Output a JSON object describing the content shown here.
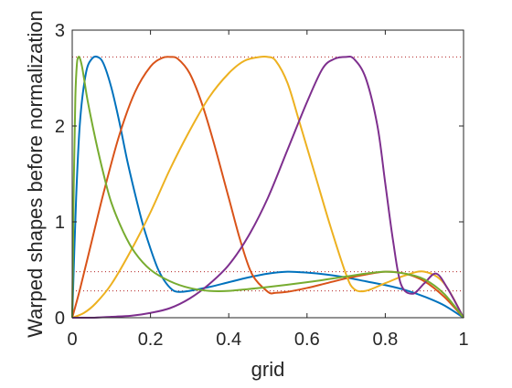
{
  "chart_data": {
    "type": "line",
    "title": "",
    "xlabel": "grid",
    "ylabel": "Warped shapes before normalization",
    "xlim": [
      0,
      1
    ],
    "ylim": [
      0,
      3
    ],
    "xticks": [
      0,
      0.2,
      0.4,
      0.6,
      0.8,
      1
    ],
    "xtick_labels": [
      "0",
      "0.2",
      "0.4",
      "0.6",
      "0.8",
      "1"
    ],
    "yticks": [
      0,
      1,
      2,
      3
    ],
    "ytick_labels": [
      "0",
      "1",
      "2",
      "3"
    ],
    "grid": false,
    "reference_lines": [
      {
        "y": 2.72,
        "style": "dotted",
        "color": "#b22222"
      },
      {
        "y": 0.48,
        "style": "dotted",
        "color": "#b22222"
      },
      {
        "y": 0.28,
        "style": "dotted",
        "color": "#b22222"
      }
    ],
    "series": [
      {
        "color": "#0072BD",
        "x": [
          0,
          0.01,
          0.02,
          0.035,
          0.05,
          0.065,
          0.08,
          0.1,
          0.12,
          0.14,
          0.16,
          0.18,
          0.2,
          0.22,
          0.24,
          0.26,
          0.28,
          0.3,
          0.35,
          0.4,
          0.45,
          0.5,
          0.55,
          0.6,
          0.65,
          0.7,
          0.75,
          0.8,
          0.85,
          0.9,
          0.95,
          1
        ],
        "y": [
          0,
          1.25,
          2.05,
          2.55,
          2.7,
          2.72,
          2.65,
          2.4,
          2.05,
          1.65,
          1.3,
          0.98,
          0.72,
          0.5,
          0.36,
          0.28,
          0.27,
          0.28,
          0.32,
          0.37,
          0.42,
          0.46,
          0.48,
          0.47,
          0.45,
          0.42,
          0.38,
          0.34,
          0.29,
          0.22,
          0.13,
          0
        ]
      },
      {
        "color": "#D95319",
        "x": [
          0,
          0.02,
          0.05,
          0.08,
          0.12,
          0.16,
          0.2,
          0.23,
          0.25,
          0.27,
          0.3,
          0.33,
          0.36,
          0.4,
          0.43,
          0.46,
          0.5,
          0.52,
          0.55,
          0.6,
          0.65,
          0.7,
          0.75,
          0.8,
          0.85,
          0.9,
          0.95,
          1
        ],
        "y": [
          0,
          0.3,
          0.8,
          1.3,
          1.9,
          2.35,
          2.62,
          2.71,
          2.72,
          2.7,
          2.55,
          2.25,
          1.85,
          1.25,
          0.8,
          0.45,
          0.27,
          0.26,
          0.27,
          0.31,
          0.36,
          0.41,
          0.45,
          0.48,
          0.46,
          0.38,
          0.22,
          0
        ]
      },
      {
        "color": "#EDB120",
        "x": [
          0,
          0.03,
          0.06,
          0.1,
          0.15,
          0.2,
          0.25,
          0.3,
          0.35,
          0.4,
          0.44,
          0.48,
          0.5,
          0.52,
          0.55,
          0.58,
          0.62,
          0.66,
          0.7,
          0.72,
          0.75,
          0.8,
          0.85,
          0.9,
          0.95,
          1
        ],
        "y": [
          0,
          0.05,
          0.15,
          0.35,
          0.7,
          1.1,
          1.55,
          1.95,
          2.3,
          2.55,
          2.68,
          2.72,
          2.72,
          2.68,
          2.45,
          2.05,
          1.5,
          0.95,
          0.45,
          0.3,
          0.28,
          0.36,
          0.44,
          0.48,
          0.36,
          0
        ]
      },
      {
        "color": "#7E2F8E",
        "x": [
          0,
          0.05,
          0.1,
          0.15,
          0.2,
          0.25,
          0.3,
          0.35,
          0.4,
          0.45,
          0.5,
          0.55,
          0.6,
          0.64,
          0.67,
          0.7,
          0.72,
          0.75,
          0.78,
          0.8,
          0.82,
          0.84,
          0.87,
          0.9,
          0.93,
          0.96,
          1
        ],
        "y": [
          0,
          0,
          0.01,
          0.02,
          0.05,
          0.1,
          0.2,
          0.35,
          0.55,
          0.85,
          1.25,
          1.75,
          2.25,
          2.6,
          2.7,
          2.72,
          2.7,
          2.5,
          2.0,
          1.4,
          0.8,
          0.35,
          0.25,
          0.36,
          0.46,
          0.3,
          0
        ]
      },
      {
        "color": "#77AC30",
        "x": [
          0,
          0.004,
          0.008,
          0.012,
          0.016,
          0.02,
          0.025,
          0.03,
          0.04,
          0.06,
          0.08,
          0.1,
          0.13,
          0.16,
          0.2,
          0.25,
          0.3,
          0.35,
          0.4,
          0.5,
          0.6,
          0.7,
          0.75,
          0.8,
          0.85,
          0.9,
          0.95,
          1
        ],
        "y": [
          0,
          1.4,
          2.3,
          2.65,
          2.72,
          2.7,
          2.62,
          2.5,
          2.25,
          1.85,
          1.5,
          1.2,
          0.9,
          0.68,
          0.5,
          0.38,
          0.31,
          0.28,
          0.28,
          0.32,
          0.37,
          0.43,
          0.46,
          0.48,
          0.46,
          0.4,
          0.25,
          0
        ]
      }
    ]
  }
}
